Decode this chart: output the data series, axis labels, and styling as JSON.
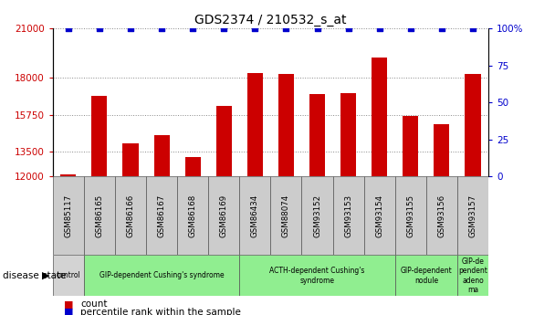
{
  "title": "GDS2374 / 210532_s_at",
  "samples": [
    "GSM85117",
    "GSM86165",
    "GSM86166",
    "GSM86167",
    "GSM86168",
    "GSM86169",
    "GSM86434",
    "GSM88074",
    "GSM93152",
    "GSM93153",
    "GSM93154",
    "GSM93155",
    "GSM93156",
    "GSM93157"
  ],
  "counts": [
    12100,
    16900,
    14000,
    14500,
    13200,
    16300,
    18300,
    18200,
    17000,
    17050,
    19200,
    15700,
    15200,
    18200
  ],
  "percentiles": [
    100,
    100,
    100,
    100,
    100,
    100,
    100,
    100,
    100,
    100,
    100,
    100,
    100,
    100
  ],
  "ylim_left": [
    12000,
    21000
  ],
  "ylim_right": [
    0,
    100
  ],
  "yticks_left": [
    12000,
    13500,
    15750,
    18000,
    21000
  ],
  "ytick_labels_left": [
    "12000",
    "13500",
    "15750",
    "18000",
    "21000"
  ],
  "yticks_right": [
    0,
    25,
    50,
    75,
    100
  ],
  "ytick_labels_right": [
    "0",
    "25",
    "50",
    "75",
    "100%"
  ],
  "bar_color": "#cc0000",
  "dot_color": "#0000cc",
  "groups": [
    {
      "label": "control",
      "start": 0,
      "end": 1,
      "color": "#d3d3d3"
    },
    {
      "label": "GIP-dependent Cushing's syndrome",
      "start": 1,
      "end": 6,
      "color": "#90ee90"
    },
    {
      "label": "ACTH-dependent Cushing's\nsyndrome",
      "start": 6,
      "end": 11,
      "color": "#90ee90"
    },
    {
      "label": "GIP-dependent\nnodule",
      "start": 11,
      "end": 13,
      "color": "#90ee90"
    },
    {
      "label": "GIP-de\npendent\nadeno\nma",
      "start": 13,
      "end": 14,
      "color": "#90ee90"
    }
  ],
  "bg_color": "#ffffff",
  "grid_color": "#888888",
  "bar_width": 0.5
}
